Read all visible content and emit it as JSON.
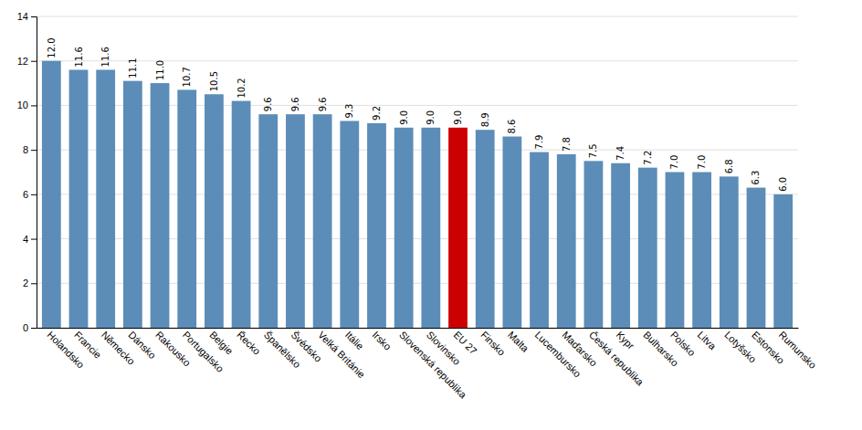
{
  "chart_data": {
    "type": "bar",
    "categories": [
      "Holandsko",
      "Francie",
      "Německo",
      "Dánsko",
      "Rakousko",
      "Portugalsko",
      "Belgie",
      "Řecko",
      "Španělsko",
      "Švédsko",
      "Velká Británie",
      "Itálie",
      "Irsko",
      "Slovenská republika",
      "Slovinsko",
      "EU 27",
      "Finsko",
      "Malta",
      "Lucembursko",
      "Maďarsko",
      "Česká republika",
      "Kypr",
      "Bulharsko",
      "Polsko",
      "Litva",
      "Lotyšsko",
      "Estonsko",
      "Rumunsko"
    ],
    "values": [
      12.0,
      11.6,
      11.6,
      11.1,
      11.0,
      10.7,
      10.5,
      10.2,
      9.6,
      9.6,
      9.6,
      9.3,
      9.2,
      9.0,
      9.0,
      9.0,
      8.9,
      8.6,
      7.9,
      7.8,
      7.5,
      7.4,
      7.2,
      7.0,
      7.0,
      6.8,
      6.3,
      6.0
    ],
    "value_labels": [
      "12.0",
      "11.6",
      "11.6",
      "11.1",
      "11.0",
      "10.7",
      "10.5",
      "10.2",
      "9.6",
      "9.6",
      "9.6",
      "9.3",
      "9.2",
      "9.0",
      "9.0",
      "9.0",
      "8.9",
      "8.6",
      "7.9",
      "7.8",
      "7.5",
      "7.4",
      "7.2",
      "7.0",
      "7.0",
      "6.8",
      "6.3",
      "6.0"
    ],
    "colors": [
      "#5B8DB8",
      "#5B8DB8",
      "#5B8DB8",
      "#5B8DB8",
      "#5B8DB8",
      "#5B8DB8",
      "#5B8DB8",
      "#5B8DB8",
      "#5B8DB8",
      "#5B8DB8",
      "#5B8DB8",
      "#5B8DB8",
      "#5B8DB8",
      "#5B8DB8",
      "#5B8DB8",
      "#CC0000",
      "#5B8DB8",
      "#5B8DB8",
      "#5B8DB8",
      "#5B8DB8",
      "#5B8DB8",
      "#5B8DB8",
      "#5B8DB8",
      "#5B8DB8",
      "#5B8DB8",
      "#5B8DB8",
      "#5B8DB8",
      "#5B8DB8"
    ],
    "ylim": [
      0,
      14
    ],
    "yticks": [
      0,
      2,
      4,
      6,
      8,
      10,
      12,
      14
    ],
    "grid": true,
    "data_labels": true
  }
}
